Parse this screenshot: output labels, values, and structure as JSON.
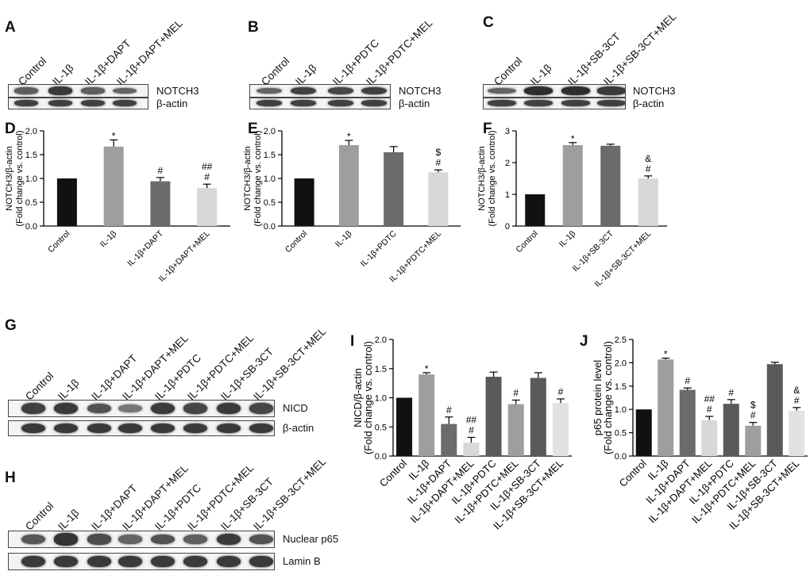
{
  "figure": {
    "panel_letters": [
      "A",
      "B",
      "C",
      "D",
      "E",
      "F",
      "G",
      "H",
      "I",
      "J"
    ],
    "colors": {
      "control": "#111111",
      "il1b": "#9e9e9e",
      "mid": "#6b6b6b",
      "light": "#d8d8d8",
      "dark": "#5a5a5a"
    }
  },
  "blots": [
    {
      "id": "A",
      "lanes": [
        "Control",
        "IL-1β",
        "IL-1β+DAPT",
        "IL-1β+DAPT+MEL"
      ],
      "rows": [
        {
          "label": "NOTCH3",
          "intensities": [
            0.55,
            0.85,
            0.55,
            0.5
          ]
        },
        {
          "label": "β-actin",
          "intensities": [
            0.8,
            0.8,
            0.8,
            0.8
          ]
        }
      ]
    },
    {
      "id": "B",
      "lanes": [
        "Control",
        "IL-1β",
        "IL-1β+PDTC",
        "IL-1β+PDTC+MEL"
      ],
      "rows": [
        {
          "label": "NOTCH3",
          "intensities": [
            0.5,
            0.8,
            0.75,
            0.8
          ]
        },
        {
          "label": "β-actin",
          "intensities": [
            0.8,
            0.8,
            0.8,
            0.8
          ]
        }
      ]
    },
    {
      "id": "C",
      "lanes": [
        "Control",
        "IL-1β",
        "IL-1β+SB-3CT",
        "IL-1β+SB-3CT+MEL"
      ],
      "rows": [
        {
          "label": "NOTCH3",
          "intensities": [
            0.5,
            0.95,
            0.95,
            0.85
          ]
        },
        {
          "label": "β-actin",
          "intensities": [
            0.8,
            0.8,
            0.8,
            0.8
          ]
        }
      ]
    },
    {
      "id": "G",
      "lanes": [
        "Control",
        "IL-1β",
        "IL-1β+DAPT",
        "IL-1β+DAPT+MEL",
        "IL-1β+PDTC",
        "IL-1β+PDTC+MEL",
        "IL-1β+SB-3CT",
        "IL-1β+SB-3CT+MEL"
      ],
      "rows": [
        {
          "label": "NICD",
          "intensities": [
            0.8,
            0.85,
            0.65,
            0.35,
            0.85,
            0.75,
            0.85,
            0.75
          ]
        },
        {
          "label": "β-actin",
          "intensities": [
            0.85,
            0.85,
            0.85,
            0.85,
            0.85,
            0.85,
            0.85,
            0.85
          ]
        }
      ]
    },
    {
      "id": "H",
      "lanes": [
        "Control",
        "IL-1β",
        "IL-1β+DAPT",
        "IL-1β+DAPT+MEL",
        "IL-1β+PDTC",
        "IL-1β+PDTC+MEL",
        "IL-1β+SB-3CT",
        "IL-1β+SB-3CT+MEL"
      ],
      "rows": [
        {
          "label": "Nuclear p65",
          "intensities": [
            0.6,
            0.9,
            0.7,
            0.5,
            0.65,
            0.55,
            0.85,
            0.65
          ]
        },
        {
          "label": "Lamin B",
          "intensities": [
            0.85,
            0.85,
            0.85,
            0.85,
            0.85,
            0.85,
            0.85,
            0.85
          ]
        }
      ]
    }
  ],
  "chart_data": [
    {
      "id": "D",
      "type": "bar",
      "ylabel": "NOTCH3/β-actin",
      "ylabel2": "(Fold change vs. control)",
      "categories": [
        "Control",
        "IL-1β",
        "IL-1β+DAPT",
        "IL-1β+DAPT+MEL"
      ],
      "values": [
        1.0,
        1.67,
        0.94,
        0.8
      ],
      "errors": [
        0,
        0.14,
        0.08,
        0.08
      ],
      "annotations": [
        "",
        "*",
        "#",
        "##|#"
      ],
      "ylim": [
        0,
        2.0
      ],
      "ticks": [
        0.0,
        0.5,
        1.0,
        1.5,
        2.0
      ],
      "tick_labels": [
        "0.0",
        "0.5",
        "1.0",
        "1.5",
        "2.0"
      ],
      "colors": [
        "#111111",
        "#9e9e9e",
        "#6b6b6b",
        "#d8d8d8"
      ]
    },
    {
      "id": "E",
      "type": "bar",
      "ylabel": "NOTCH3/β-actin",
      "ylabel2": "(Fold change vs. control)",
      "categories": [
        "Control",
        "IL-1β",
        "IL-1β+PDTC",
        "IL-1β+PDTC+MEL"
      ],
      "values": [
        1.0,
        1.7,
        1.55,
        1.13
      ],
      "errors": [
        0,
        0.1,
        0.12,
        0.05
      ],
      "annotations": [
        "",
        "*",
        "",
        "$|#"
      ],
      "ylim": [
        0,
        2.0
      ],
      "ticks": [
        0.0,
        0.5,
        1.0,
        1.5,
        2.0
      ],
      "tick_labels": [
        "0.0",
        "0.5",
        "1.0",
        "1.5",
        "2.0"
      ],
      "colors": [
        "#111111",
        "#9e9e9e",
        "#6b6b6b",
        "#d8d8d8"
      ]
    },
    {
      "id": "F",
      "type": "bar",
      "ylabel": "NOTCH3/β-actin",
      "ylabel2": "(Fold change vs. control)",
      "categories": [
        "Control",
        "IL-1β",
        "IL-1β+SB-3CT",
        "IL-1β+SB-3CT+MEL"
      ],
      "values": [
        1.0,
        2.55,
        2.53,
        1.5
      ],
      "errors": [
        0,
        0.08,
        0.05,
        0.08
      ],
      "annotations": [
        "",
        "*",
        "",
        "&|#"
      ],
      "ylim": [
        0,
        3
      ],
      "ticks": [
        0,
        1,
        2,
        3
      ],
      "tick_labels": [
        "0",
        "1",
        "2",
        "3"
      ],
      "colors": [
        "#111111",
        "#9e9e9e",
        "#6b6b6b",
        "#d8d8d8"
      ]
    },
    {
      "id": "I",
      "type": "bar",
      "ylabel": "NICD/β-actin",
      "ylabel2": "(Fold change vs. control)",
      "categories": [
        "Control",
        "IL-1β",
        "IL-1β+DAPT",
        "IL-1β+DAPT+MEL",
        "IL-1β+PDTC",
        "IL-1β+PDTC+MEL",
        "IL-1β+SB-3CT",
        "IL-1β+SB-3CT+MEL"
      ],
      "values": [
        1.0,
        1.4,
        0.55,
        0.23,
        1.36,
        0.89,
        1.34,
        0.91
      ],
      "errors": [
        0,
        0.03,
        0.12,
        0.09,
        0.08,
        0.07,
        0.09,
        0.07
      ],
      "annotations": [
        "",
        "*",
        "#",
        "##|#",
        "",
        "#",
        "",
        "#"
      ],
      "ylim": [
        0,
        2.0
      ],
      "ticks": [
        0.0,
        0.5,
        1.0,
        1.5,
        2.0
      ],
      "tick_labels": [
        "0.0",
        "0.5",
        "1.0",
        "1.5",
        "2.0"
      ],
      "colors": [
        "#111111",
        "#9e9e9e",
        "#6b6b6b",
        "#d8d8d8",
        "#5a5a5a",
        "#9e9e9e",
        "#5a5a5a",
        "#e2e2e2"
      ]
    },
    {
      "id": "J",
      "type": "bar",
      "ylabel": "p65 protein level",
      "ylabel2": "(Fold change vs. control)",
      "categories": [
        "Control",
        "IL-1β",
        "IL-1β+DAPT",
        "IL-1β+DAPT+MEL",
        "IL-1β+PDTC",
        "IL-1β+PDTC+MEL",
        "IL-1β+SB-3CT",
        "IL-1β+SB-3CT+MEL"
      ],
      "values": [
        1.0,
        2.07,
        1.42,
        0.77,
        1.12,
        0.65,
        1.97,
        0.97
      ],
      "errors": [
        0,
        0.03,
        0.04,
        0.08,
        0.09,
        0.07,
        0.04,
        0.07
      ],
      "annotations": [
        "",
        "*",
        "#",
        "##|#",
        "#",
        "$|#",
        "",
        "&|#"
      ],
      "ylim": [
        0,
        2.5
      ],
      "ticks": [
        0.0,
        0.5,
        1.0,
        1.5,
        2.0,
        2.5
      ],
      "tick_labels": [
        "0.0",
        "0.5",
        "1.0",
        "1.5",
        "2.0",
        "2.5"
      ],
      "colors": [
        "#111111",
        "#9e9e9e",
        "#6b6b6b",
        "#d8d8d8",
        "#5a5a5a",
        "#9e9e9e",
        "#5a5a5a",
        "#e2e2e2"
      ]
    }
  ]
}
